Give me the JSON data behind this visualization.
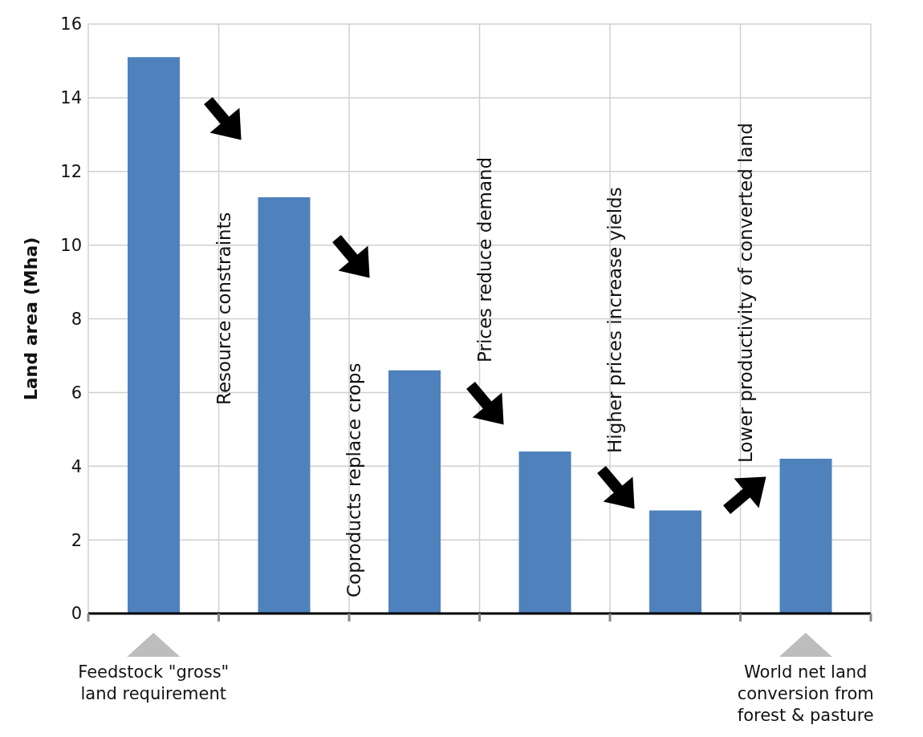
{
  "chart_data": {
    "type": "bar",
    "ylabel": "Land area (Mha)",
    "categories": [
      "Feedstock \"gross\" land requirement",
      null,
      null,
      null,
      null,
      "World net land conversion from forest & pasture"
    ],
    "values": [
      15.1,
      11.3,
      6.6,
      4.4,
      2.8,
      4.2
    ],
    "color": "#4f81bd",
    "ylim": [
      0,
      16
    ],
    "yticks": [
      0,
      2,
      4,
      6,
      8,
      10,
      12,
      14,
      16
    ],
    "grid": true,
    "annotations": [
      "Resource constraints",
      "Coproducts replace crops",
      "Prices reduce demand",
      "Higher prices increase yields",
      "Lower productivity of converted land"
    ]
  }
}
